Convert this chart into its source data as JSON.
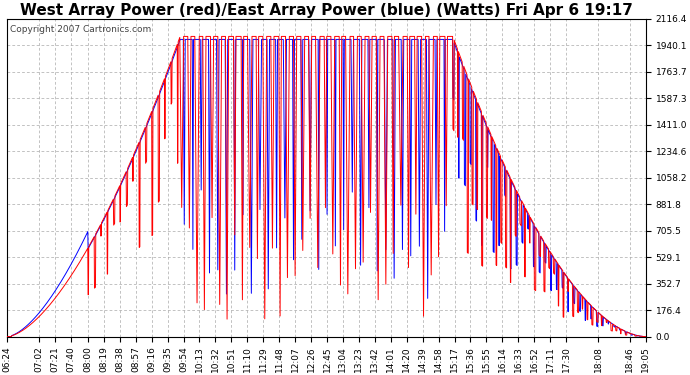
{
  "title": "West Array Power (red)/East Array Power (blue) (Watts) Fri Apr 6 19:17",
  "copyright": "Copyright 2007 Cartronics.com",
  "background_color": "#ffffff",
  "plot_bg_color": "#ffffff",
  "grid_color": "#aaaaaa",
  "ylim": [
    0.0,
    2116.4
  ],
  "yticks": [
    0.0,
    176.4,
    352.7,
    529.1,
    705.5,
    881.8,
    1058.2,
    1234.6,
    1411.0,
    1587.3,
    1763.7,
    1940.1,
    2116.4
  ],
  "west_color": "#ff0000",
  "east_color": "#0000ff",
  "xtick_labels": [
    "06:24",
    "07:02",
    "07:21",
    "07:40",
    "08:00",
    "08:19",
    "08:38",
    "08:57",
    "09:16",
    "09:35",
    "09:54",
    "10:13",
    "10:32",
    "10:51",
    "11:10",
    "11:29",
    "11:48",
    "12:07",
    "12:26",
    "12:45",
    "13:04",
    "13:23",
    "13:42",
    "14:01",
    "14:20",
    "14:39",
    "14:58",
    "15:17",
    "15:36",
    "15:55",
    "16:14",
    "16:33",
    "16:52",
    "17:11",
    "17:30",
    "18:08",
    "18:46",
    "19:05"
  ],
  "title_fontsize": 11,
  "copyright_fontsize": 6.5,
  "tick_fontsize": 6.5,
  "line_width": 0.7
}
